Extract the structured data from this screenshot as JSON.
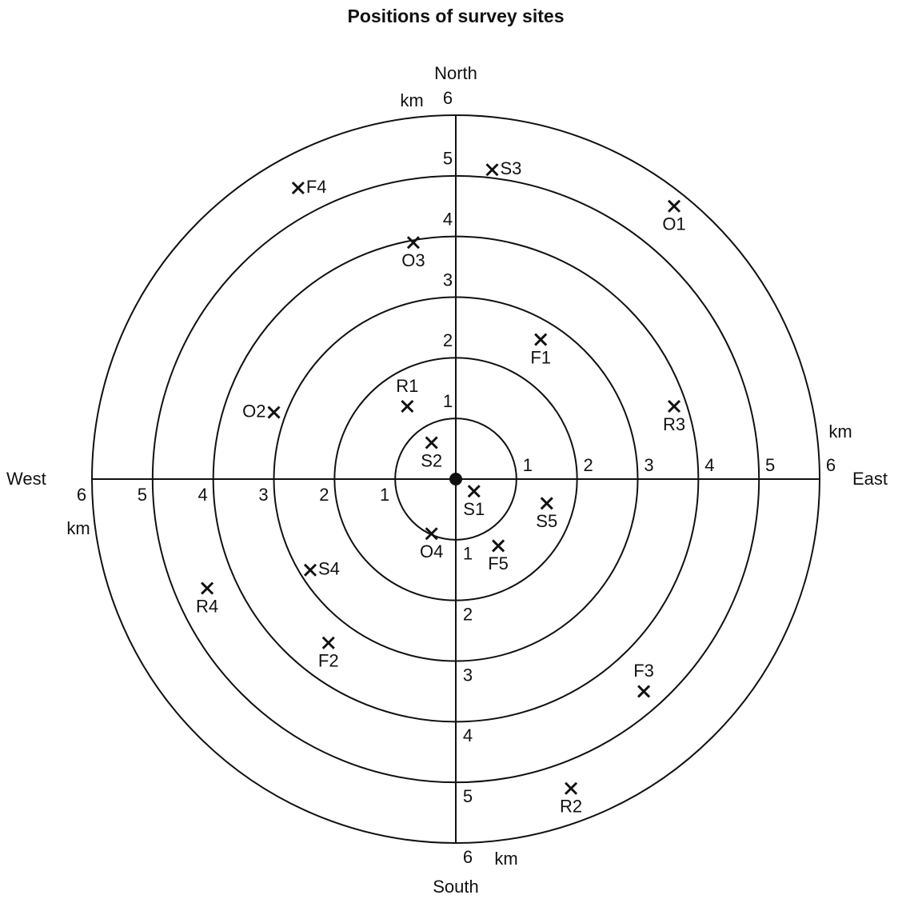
{
  "title": "Positions of survey sites",
  "directions": {
    "north": "North",
    "east": "East",
    "south": "South",
    "west": "West"
  },
  "unit": "km",
  "rings": [
    1,
    2,
    3,
    4,
    5,
    6
  ],
  "sites": [
    {
      "label": "S3",
      "east": 0.6,
      "north": 5.1
    },
    {
      "label": "F4",
      "east": -2.6,
      "north": 4.8
    },
    {
      "label": "O1",
      "east": 3.6,
      "north": 4.5
    },
    {
      "label": "O3",
      "east": -0.7,
      "north": 3.9
    },
    {
      "label": "F1",
      "east": 1.4,
      "north": 2.3
    },
    {
      "label": "R1",
      "east": -0.8,
      "north": 1.2
    },
    {
      "label": "O2",
      "east": -3.0,
      "north": 1.1
    },
    {
      "label": "R3",
      "east": 3.6,
      "north": 1.2
    },
    {
      "label": "S2",
      "east": -0.4,
      "north": 0.6
    },
    {
      "label": "S1",
      "east": 0.3,
      "north": -0.2
    },
    {
      "label": "S5",
      "east": 1.5,
      "north": -0.4
    },
    {
      "label": "O4",
      "east": -0.4,
      "north": -0.9
    },
    {
      "label": "F5",
      "east": 0.7,
      "north": -1.1
    },
    {
      "label": "S4",
      "east": -2.4,
      "north": -1.5
    },
    {
      "label": "R4",
      "east": -4.1,
      "north": -1.8
    },
    {
      "label": "F2",
      "east": -2.1,
      "north": -2.7
    },
    {
      "label": "F3",
      "east": 3.1,
      "north": -3.5
    },
    {
      "label": "R2",
      "east": 1.9,
      "north": -5.1
    }
  ]
}
